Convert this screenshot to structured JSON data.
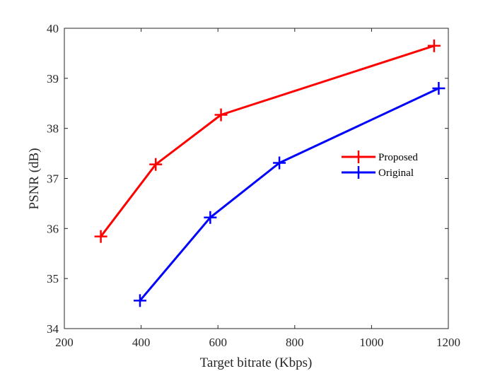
{
  "chart_data": {
    "type": "line",
    "title": "",
    "xlabel": "Target bitrate (Kbps)",
    "ylabel": "PSNR (dB)",
    "xlim": [
      200,
      1200
    ],
    "ylim": [
      34,
      40
    ],
    "xticks": [
      "200",
      "400",
      "600",
      "800",
      "1000",
      "1200"
    ],
    "yticks": [
      "34",
      "35",
      "36",
      "37",
      "38",
      "39",
      "40"
    ],
    "grid": false,
    "legend_placement": "right",
    "series": [
      {
        "name": "Proposed",
        "color": "#ff0000",
        "marker": "plus",
        "x": [
          295,
          438,
          608,
          1163
        ],
        "y": [
          35.84,
          37.28,
          38.27,
          39.65
        ]
      },
      {
        "name": "Original",
        "color": "#0000ff",
        "marker": "plus",
        "x": [
          397,
          580,
          760,
          1175
        ],
        "y": [
          34.56,
          36.22,
          37.31,
          38.8
        ]
      }
    ]
  }
}
